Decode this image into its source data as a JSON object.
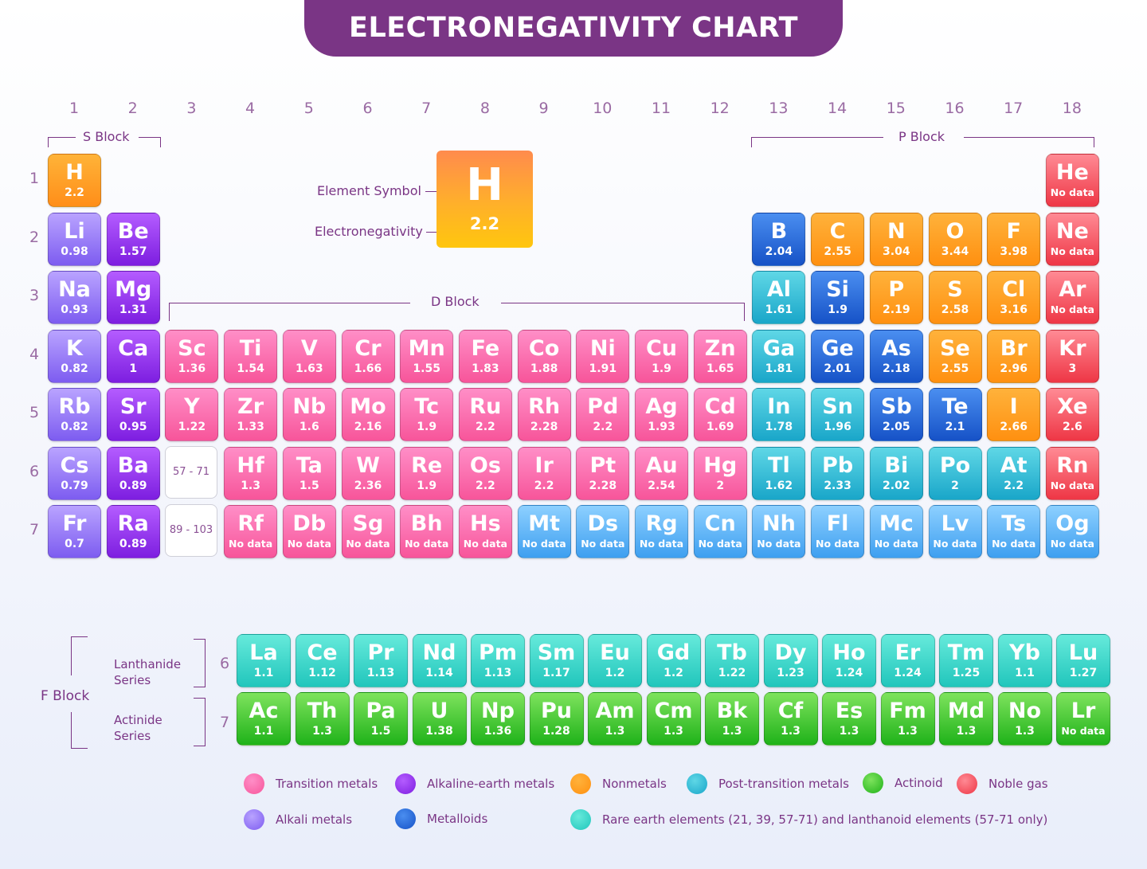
{
  "title": "ELECTRONEGATIVITY CHART",
  "groups": [
    "1",
    "2",
    "3",
    "4",
    "5",
    "6",
    "7",
    "8",
    "9",
    "10",
    "11",
    "12",
    "13",
    "14",
    "15",
    "16",
    "17",
    "18"
  ],
  "periods": [
    "1",
    "2",
    "3",
    "4",
    "5",
    "6",
    "7"
  ],
  "blocks": {
    "s": "S Block",
    "p": "P Block",
    "d": "D Block",
    "f": "F Block"
  },
  "key": {
    "symbol": "H",
    "value": "2.2",
    "symbol_label": "Element Symbol",
    "value_label": "Electronegativity"
  },
  "ranges": {
    "lanthanide_range": "57 - 71",
    "actinide_range": "89 - 103"
  },
  "series": {
    "lanthanide": "Lanthanide Series",
    "actinide": "Actinide Series",
    "lanthanide_period": "6",
    "actinide_period": "7"
  },
  "category_colors": {
    "transition": [
      "#ff8ec7",
      "#f7559a"
    ],
    "alkaline": [
      "#b45cff",
      "#7d1ee0"
    ],
    "nonmetal": [
      "#ffb23b",
      "#ff9010"
    ],
    "post": [
      "#5fd7e6",
      "#19a6c9"
    ],
    "actinoid": [
      "#7ee35d",
      "#1fb219"
    ],
    "noble": [
      "#ff8a94",
      "#ee3645"
    ],
    "alkali": [
      "#b9a3ff",
      "#7d5cf0"
    ],
    "metalloid": [
      "#4a8ef0",
      "#1652c7"
    ],
    "rare": [
      "#66eadb",
      "#21c6bc"
    ],
    "unknown": [
      "#8dd0ff",
      "#3e9ff0"
    ],
    "hydrogen": [
      "#ffb338",
      "#ff8e19"
    ]
  },
  "elements": [
    {
      "s": "H",
      "v": "2.2",
      "g": 1,
      "p": 1,
      "c": "hydrogen"
    },
    {
      "s": "He",
      "v": "No data",
      "g": 18,
      "p": 1,
      "c": "noble"
    },
    {
      "s": "Li",
      "v": "0.98",
      "g": 1,
      "p": 2,
      "c": "alkali"
    },
    {
      "s": "Be",
      "v": "1.57",
      "g": 2,
      "p": 2,
      "c": "alkaline"
    },
    {
      "s": "B",
      "v": "2.04",
      "g": 13,
      "p": 2,
      "c": "metalloid"
    },
    {
      "s": "C",
      "v": "2.55",
      "g": 14,
      "p": 2,
      "c": "nonmetal"
    },
    {
      "s": "N",
      "v": "3.04",
      "g": 15,
      "p": 2,
      "c": "nonmetal"
    },
    {
      "s": "O",
      "v": "3.44",
      "g": 16,
      "p": 2,
      "c": "nonmetal"
    },
    {
      "s": "F",
      "v": "3.98",
      "g": 17,
      "p": 2,
      "c": "nonmetal"
    },
    {
      "s": "Ne",
      "v": "No data",
      "g": 18,
      "p": 2,
      "c": "noble"
    },
    {
      "s": "Na",
      "v": "0.93",
      "g": 1,
      "p": 3,
      "c": "alkali"
    },
    {
      "s": "Mg",
      "v": "1.31",
      "g": 2,
      "p": 3,
      "c": "alkaline"
    },
    {
      "s": "Al",
      "v": "1.61",
      "g": 13,
      "p": 3,
      "c": "post"
    },
    {
      "s": "Si",
      "v": "1.9",
      "g": 14,
      "p": 3,
      "c": "metalloid"
    },
    {
      "s": "P",
      "v": "2.19",
      "g": 15,
      "p": 3,
      "c": "nonmetal"
    },
    {
      "s": "S",
      "v": "2.58",
      "g": 16,
      "p": 3,
      "c": "nonmetal"
    },
    {
      "s": "Cl",
      "v": "3.16",
      "g": 17,
      "p": 3,
      "c": "nonmetal"
    },
    {
      "s": "Ar",
      "v": "No data",
      "g": 18,
      "p": 3,
      "c": "noble"
    },
    {
      "s": "K",
      "v": "0.82",
      "g": 1,
      "p": 4,
      "c": "alkali"
    },
    {
      "s": "Ca",
      "v": "1",
      "g": 2,
      "p": 4,
      "c": "alkaline"
    },
    {
      "s": "Sc",
      "v": "1.36",
      "g": 3,
      "p": 4,
      "c": "transition"
    },
    {
      "s": "Ti",
      "v": "1.54",
      "g": 4,
      "p": 4,
      "c": "transition"
    },
    {
      "s": "V",
      "v": "1.63",
      "g": 5,
      "p": 4,
      "c": "transition"
    },
    {
      "s": "Cr",
      "v": "1.66",
      "g": 6,
      "p": 4,
      "c": "transition"
    },
    {
      "s": "Mn",
      "v": "1.55",
      "g": 7,
      "p": 4,
      "c": "transition"
    },
    {
      "s": "Fe",
      "v": "1.83",
      "g": 8,
      "p": 4,
      "c": "transition"
    },
    {
      "s": "Co",
      "v": "1.88",
      "g": 9,
      "p": 4,
      "c": "transition"
    },
    {
      "s": "Ni",
      "v": "1.91",
      "g": 10,
      "p": 4,
      "c": "transition"
    },
    {
      "s": "Cu",
      "v": "1.9",
      "g": 11,
      "p": 4,
      "c": "transition"
    },
    {
      "s": "Zn",
      "v": "1.65",
      "g": 12,
      "p": 4,
      "c": "transition"
    },
    {
      "s": "Ga",
      "v": "1.81",
      "g": 13,
      "p": 4,
      "c": "post"
    },
    {
      "s": "Ge",
      "v": "2.01",
      "g": 14,
      "p": 4,
      "c": "metalloid"
    },
    {
      "s": "As",
      "v": "2.18",
      "g": 15,
      "p": 4,
      "c": "metalloid"
    },
    {
      "s": "Se",
      "v": "2.55",
      "g": 16,
      "p": 4,
      "c": "nonmetal"
    },
    {
      "s": "Br",
      "v": "2.96",
      "g": 17,
      "p": 4,
      "c": "nonmetal"
    },
    {
      "s": "Kr",
      "v": "3",
      "g": 18,
      "p": 4,
      "c": "noble"
    },
    {
      "s": "Rb",
      "v": "0.82",
      "g": 1,
      "p": 5,
      "c": "alkali"
    },
    {
      "s": "Sr",
      "v": "0.95",
      "g": 2,
      "p": 5,
      "c": "alkaline"
    },
    {
      "s": "Y",
      "v": "1.22",
      "g": 3,
      "p": 5,
      "c": "transition"
    },
    {
      "s": "Zr",
      "v": "1.33",
      "g": 4,
      "p": 5,
      "c": "transition"
    },
    {
      "s": "Nb",
      "v": "1.6",
      "g": 5,
      "p": 5,
      "c": "transition"
    },
    {
      "s": "Mo",
      "v": "2.16",
      "g": 6,
      "p": 5,
      "c": "transition"
    },
    {
      "s": "Tc",
      "v": "1.9",
      "g": 7,
      "p": 5,
      "c": "transition"
    },
    {
      "s": "Ru",
      "v": "2.2",
      "g": 8,
      "p": 5,
      "c": "transition"
    },
    {
      "s": "Rh",
      "v": "2.28",
      "g": 9,
      "p": 5,
      "c": "transition"
    },
    {
      "s": "Pd",
      "v": "2.2",
      "g": 10,
      "p": 5,
      "c": "transition"
    },
    {
      "s": "Ag",
      "v": "1.93",
      "g": 11,
      "p": 5,
      "c": "transition"
    },
    {
      "s": "Cd",
      "v": "1.69",
      "g": 12,
      "p": 5,
      "c": "transition"
    },
    {
      "s": "In",
      "v": "1.78",
      "g": 13,
      "p": 5,
      "c": "post"
    },
    {
      "s": "Sn",
      "v": "1.96",
      "g": 14,
      "p": 5,
      "c": "post"
    },
    {
      "s": "Sb",
      "v": "2.05",
      "g": 15,
      "p": 5,
      "c": "metalloid"
    },
    {
      "s": "Te",
      "v": "2.1",
      "g": 16,
      "p": 5,
      "c": "metalloid"
    },
    {
      "s": "I",
      "v": "2.66",
      "g": 17,
      "p": 5,
      "c": "nonmetal"
    },
    {
      "s": "Xe",
      "v": "2.6",
      "g": 18,
      "p": 5,
      "c": "noble"
    },
    {
      "s": "Cs",
      "v": "0.79",
      "g": 1,
      "p": 6,
      "c": "alkali"
    },
    {
      "s": "Ba",
      "v": "0.89",
      "g": 2,
      "p": 6,
      "c": "alkaline"
    },
    {
      "s": "Hf",
      "v": "1.3",
      "g": 4,
      "p": 6,
      "c": "transition"
    },
    {
      "s": "Ta",
      "v": "1.5",
      "g": 5,
      "p": 6,
      "c": "transition"
    },
    {
      "s": "W",
      "v": "2.36",
      "g": 6,
      "p": 6,
      "c": "transition"
    },
    {
      "s": "Re",
      "v": "1.9",
      "g": 7,
      "p": 6,
      "c": "transition"
    },
    {
      "s": "Os",
      "v": "2.2",
      "g": 8,
      "p": 6,
      "c": "transition"
    },
    {
      "s": "Ir",
      "v": "2.2",
      "g": 9,
      "p": 6,
      "c": "transition"
    },
    {
      "s": "Pt",
      "v": "2.28",
      "g": 10,
      "p": 6,
      "c": "transition"
    },
    {
      "s": "Au",
      "v": "2.54",
      "g": 11,
      "p": 6,
      "c": "transition"
    },
    {
      "s": "Hg",
      "v": "2",
      "g": 12,
      "p": 6,
      "c": "transition"
    },
    {
      "s": "Tl",
      "v": "1.62",
      "g": 13,
      "p": 6,
      "c": "post"
    },
    {
      "s": "Pb",
      "v": "2.33",
      "g": 14,
      "p": 6,
      "c": "post"
    },
    {
      "s": "Bi",
      "v": "2.02",
      "g": 15,
      "p": 6,
      "c": "post"
    },
    {
      "s": "Po",
      "v": "2",
      "g": 16,
      "p": 6,
      "c": "post"
    },
    {
      "s": "At",
      "v": "2.2",
      "g": 17,
      "p": 6,
      "c": "post"
    },
    {
      "s": "Rn",
      "v": "No data",
      "g": 18,
      "p": 6,
      "c": "noble"
    },
    {
      "s": "Fr",
      "v": "0.7",
      "g": 1,
      "p": 7,
      "c": "alkali"
    },
    {
      "s": "Ra",
      "v": "0.89",
      "g": 2,
      "p": 7,
      "c": "alkaline"
    },
    {
      "s": "Rf",
      "v": "No data",
      "g": 4,
      "p": 7,
      "c": "transition"
    },
    {
      "s": "Db",
      "v": "No data",
      "g": 5,
      "p": 7,
      "c": "transition"
    },
    {
      "s": "Sg",
      "v": "No data",
      "g": 6,
      "p": 7,
      "c": "transition"
    },
    {
      "s": "Bh",
      "v": "No data",
      "g": 7,
      "p": 7,
      "c": "transition"
    },
    {
      "s": "Hs",
      "v": "No data",
      "g": 8,
      "p": 7,
      "c": "transition"
    },
    {
      "s": "Mt",
      "v": "No data",
      "g": 9,
      "p": 7,
      "c": "unknown"
    },
    {
      "s": "Ds",
      "v": "No data",
      "g": 10,
      "p": 7,
      "c": "unknown"
    },
    {
      "s": "Rg",
      "v": "No data",
      "g": 11,
      "p": 7,
      "c": "unknown"
    },
    {
      "s": "Cn",
      "v": "No data",
      "g": 12,
      "p": 7,
      "c": "unknown"
    },
    {
      "s": "Nh",
      "v": "No data",
      "g": 13,
      "p": 7,
      "c": "unknown"
    },
    {
      "s": "Fl",
      "v": "No data",
      "g": 14,
      "p": 7,
      "c": "unknown"
    },
    {
      "s": "Mc",
      "v": "No data",
      "g": 15,
      "p": 7,
      "c": "unknown"
    },
    {
      "s": "Lv",
      "v": "No data",
      "g": 16,
      "p": 7,
      "c": "unknown"
    },
    {
      "s": "Ts",
      "v": "No data",
      "g": 17,
      "p": 7,
      "c": "unknown"
    },
    {
      "s": "Og",
      "v": "No data",
      "g": 18,
      "p": 7,
      "c": "unknown"
    }
  ],
  "lanthanides": [
    {
      "s": "La",
      "v": "1.1"
    },
    {
      "s": "Ce",
      "v": "1.12"
    },
    {
      "s": "Pr",
      "v": "1.13"
    },
    {
      "s": "Nd",
      "v": "1.14"
    },
    {
      "s": "Pm",
      "v": "1.13"
    },
    {
      "s": "Sm",
      "v": "1.17"
    },
    {
      "s": "Eu",
      "v": "1.2"
    },
    {
      "s": "Gd",
      "v": "1.2"
    },
    {
      "s": "Tb",
      "v": "1.22"
    },
    {
      "s": "Dy",
      "v": "1.23"
    },
    {
      "s": "Ho",
      "v": "1.24"
    },
    {
      "s": "Er",
      "v": "1.24"
    },
    {
      "s": "Tm",
      "v": "1.25"
    },
    {
      "s": "Yb",
      "v": "1.1"
    },
    {
      "s": "Lu",
      "v": "1.27"
    }
  ],
  "actinides": [
    {
      "s": "Ac",
      "v": "1.1"
    },
    {
      "s": "Th",
      "v": "1.3"
    },
    {
      "s": "Pa",
      "v": "1.5"
    },
    {
      "s": "U",
      "v": "1.38"
    },
    {
      "s": "Np",
      "v": "1.36"
    },
    {
      "s": "Pu",
      "v": "1.28"
    },
    {
      "s": "Am",
      "v": "1.3"
    },
    {
      "s": "Cm",
      "v": "1.3"
    },
    {
      "s": "Bk",
      "v": "1.3"
    },
    {
      "s": "Cf",
      "v": "1.3"
    },
    {
      "s": "Es",
      "v": "1.3"
    },
    {
      "s": "Fm",
      "v": "1.3"
    },
    {
      "s": "Md",
      "v": "1.3"
    },
    {
      "s": "No",
      "v": "1.3"
    },
    {
      "s": "Lr",
      "v": "No data"
    }
  ],
  "legend": [
    {
      "label": "Transition metals",
      "c": "transition"
    },
    {
      "label": "Alkaline-earth metals",
      "c": "alkaline"
    },
    {
      "label": "Nonmetals",
      "c": "nonmetal"
    },
    {
      "label": "Post-transition metals",
      "c": "post"
    },
    {
      "label": "Actinoid",
      "c": "actinoid"
    },
    {
      "label": "Noble gas",
      "c": "noble"
    },
    {
      "label": "Alkali metals",
      "c": "alkali"
    },
    {
      "label": "Metalloids",
      "c": "metalloid"
    },
    {
      "label": "Rare earth elements (21, 39, 57-71) and lanthanoid elements (57-71 only)",
      "c": "rare"
    }
  ]
}
